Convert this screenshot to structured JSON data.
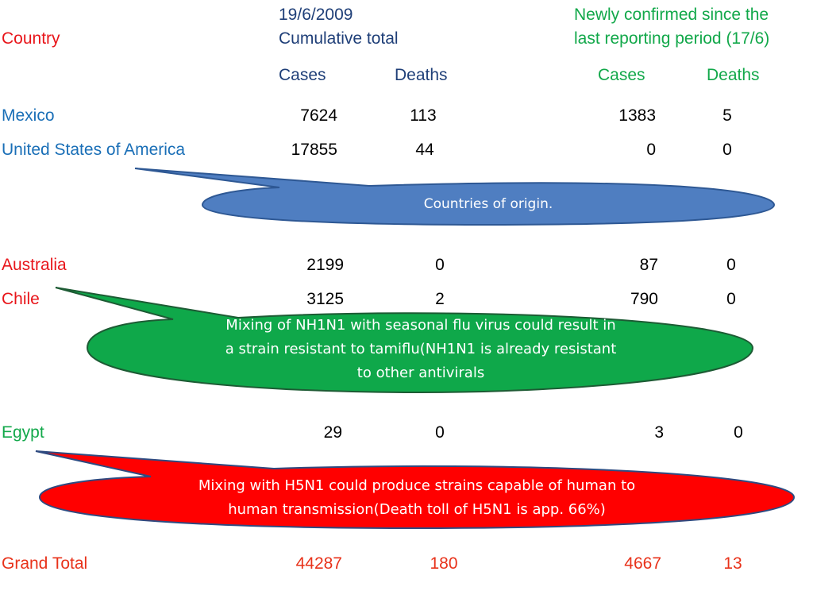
{
  "header": {
    "country": "Country",
    "date": "19/6/2009",
    "cumulative": "Cumulative total",
    "newly_line1": "Newly confirmed since the",
    "newly_line2": "last reporting period (17/6)",
    "cases": "Cases",
    "deaths": "Deaths",
    "new_cases": "Cases",
    "new_deaths": "Deaths"
  },
  "rows": [
    {
      "country": "Mexico",
      "cases": "7624",
      "deaths": "113",
      "new_cases": "1383",
      "new_deaths": "5"
    },
    {
      "country": "United States of America",
      "cases": "17855",
      "deaths": "44",
      "new_cases": "0",
      "new_deaths": "0"
    },
    {
      "country": "Australia",
      "cases": "2199",
      "deaths": "0",
      "new_cases": "87",
      "new_deaths": "0"
    },
    {
      "country": "Chile",
      "cases": "3125",
      "deaths": "2",
      "new_cases": "790",
      "new_deaths": "0"
    },
    {
      "country": "Egypt",
      "cases": "29",
      "deaths": "0",
      "new_cases": "3",
      "new_deaths": "0"
    }
  ],
  "total": {
    "label": "Grand Total",
    "cases": "44287",
    "deaths": "180",
    "new_cases": "4667",
    "new_deaths": "13"
  },
  "callouts": {
    "origin": "Countries of origin.",
    "seasonal_1": "Mixing of NH1N1 with seasonal flu virus could result in",
    "seasonal_2": "a strain resistant to tamiflu(NH1N1 is already resistant",
    "seasonal_3": "to other antivirals",
    "h5n1_1": "Mixing with H5N1 could produce strains capable of human to",
    "h5n1_2": "human transmission(Death toll of H5N1 is app. 66%)"
  },
  "colors": {
    "callout_blue": "#4f7ec1",
    "callout_green": "#0fa84a",
    "callout_red": "#ff0000"
  }
}
